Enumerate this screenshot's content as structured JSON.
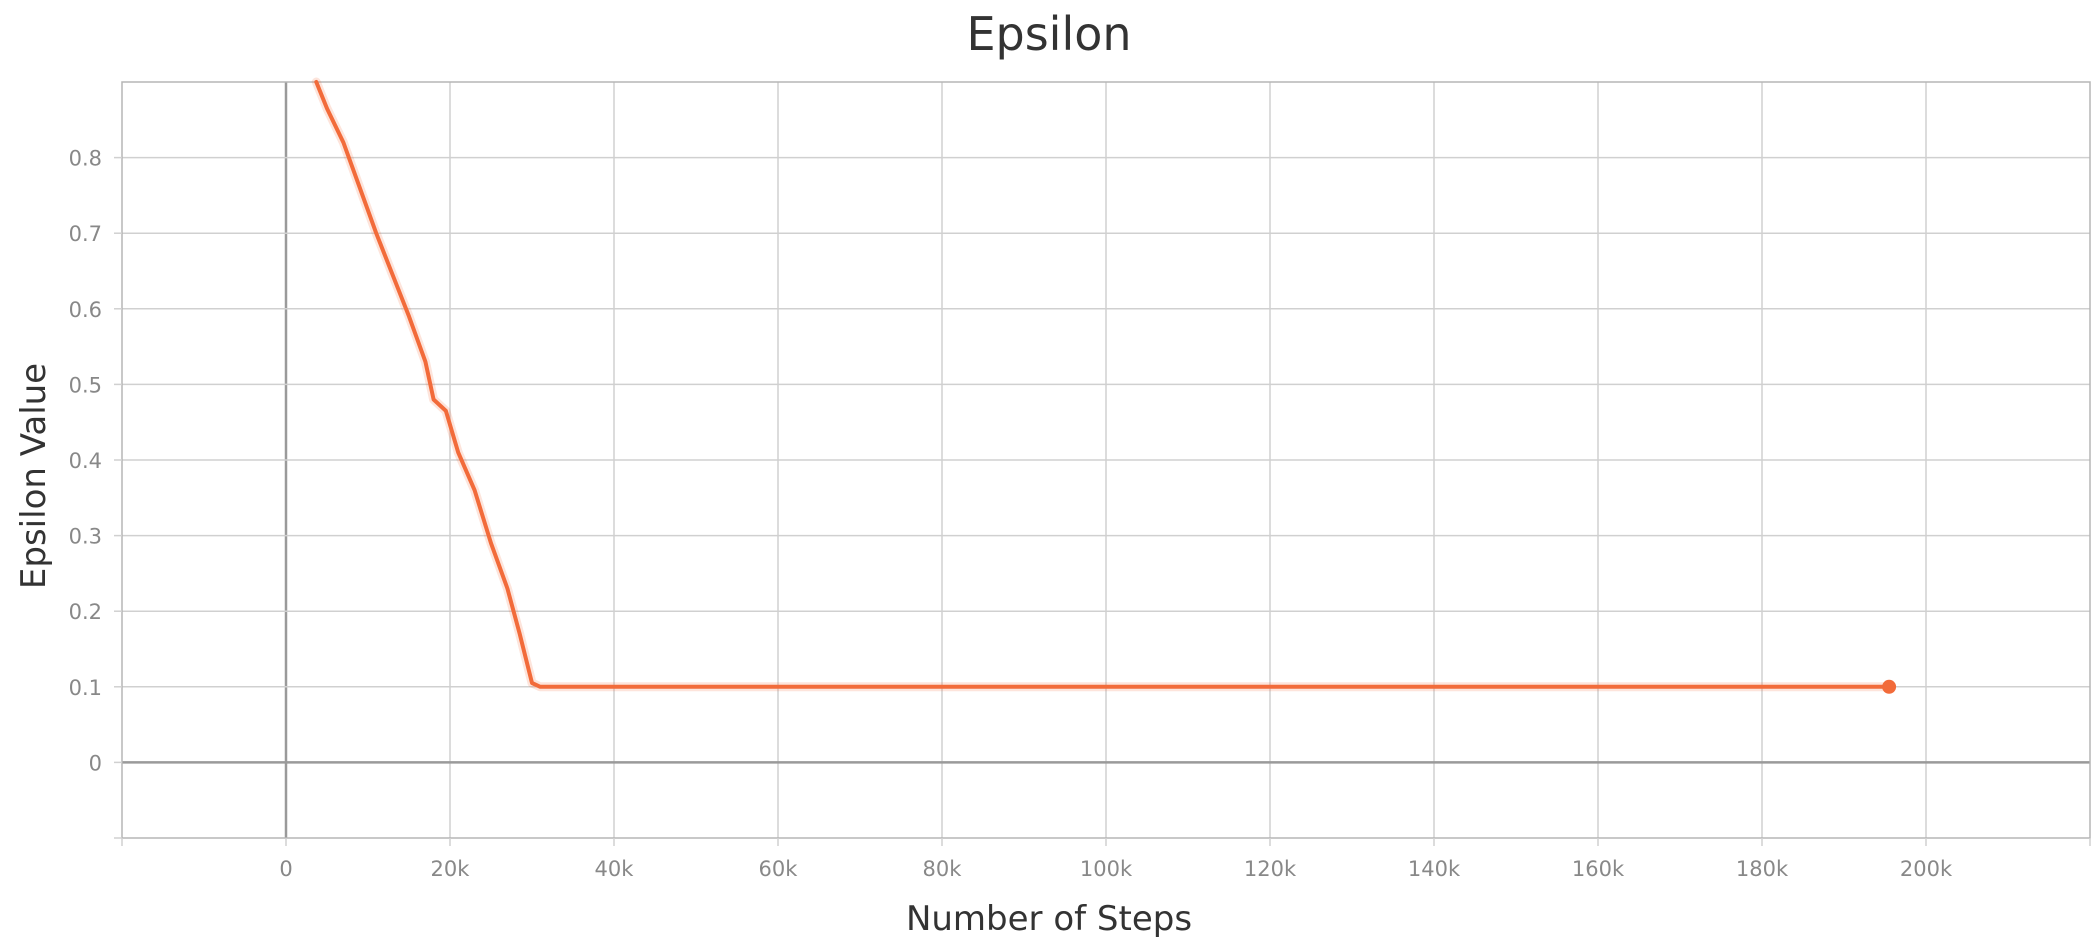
{
  "chart_data": {
    "type": "line",
    "title": "Epsilon",
    "xlabel": "Number of Steps",
    "ylabel": "Epsilon Value",
    "xlim": [
      -20000,
      220000
    ],
    "ylim": [
      -0.1,
      0.9
    ],
    "x_ticks": [
      0,
      20000,
      40000,
      60000,
      80000,
      100000,
      120000,
      140000,
      160000,
      180000,
      200000
    ],
    "x_tick_labels": [
      "0",
      "20k",
      "40k",
      "60k",
      "80k",
      "100k",
      "120k",
      "140k",
      "160k",
      "180k",
      "200k"
    ],
    "y_ticks": [
      0,
      0.1,
      0.2,
      0.3,
      0.4,
      0.5,
      0.6,
      0.7,
      0.8
    ],
    "y_tick_labels": [
      "0",
      "0.1",
      "0.2",
      "0.3",
      "0.4",
      "0.5",
      "0.6",
      "0.7",
      "0.8"
    ],
    "grid": true,
    "series": [
      {
        "color": "#f26b3a",
        "points": [
          [
            3700,
            0.9
          ],
          [
            5000,
            0.865
          ],
          [
            7000,
            0.82
          ],
          [
            9000,
            0.76
          ],
          [
            11000,
            0.7
          ],
          [
            13000,
            0.645
          ],
          [
            15000,
            0.59
          ],
          [
            17000,
            0.53
          ],
          [
            18000,
            0.48
          ],
          [
            19500,
            0.465
          ],
          [
            21000,
            0.41
          ],
          [
            23000,
            0.36
          ],
          [
            25000,
            0.29
          ],
          [
            27000,
            0.23
          ],
          [
            28500,
            0.17
          ],
          [
            30000,
            0.105
          ],
          [
            31000,
            0.1
          ],
          [
            195500,
            0.1
          ]
        ],
        "end_marker": true
      }
    ]
  }
}
